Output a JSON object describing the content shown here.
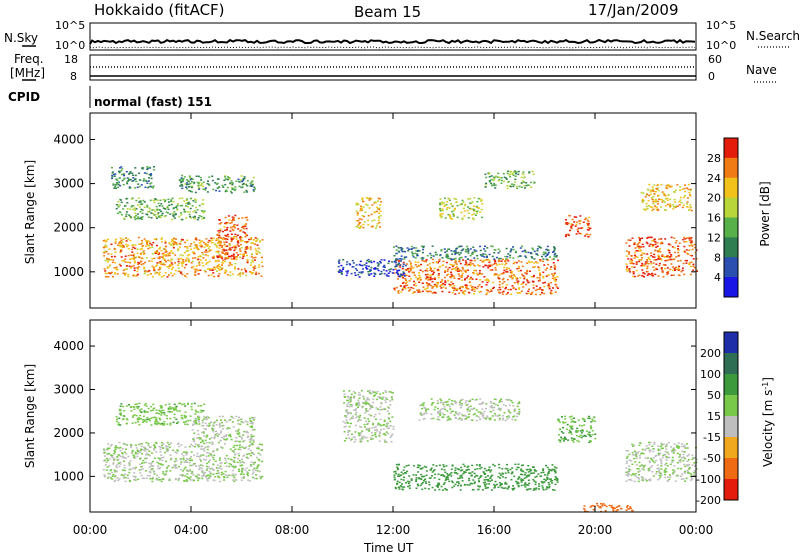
{
  "header": {
    "station": "Hokkaido (fitACF)",
    "beam": "Beam 15",
    "date": "17/Jan/2009"
  },
  "noise_panel": {
    "left_label": "N.Sky",
    "right_label": "N.Search",
    "left_ticks": [
      "10^5",
      "10^0"
    ],
    "right_ticks": [
      "10^5",
      "10^0"
    ]
  },
  "freq_panel": {
    "left_label_1": "Freq.",
    "left_label_2": "[MHz]",
    "left_ticks": [
      "18",
      "8"
    ],
    "right_label": "Nave",
    "right_ticks": [
      "60",
      "0"
    ]
  },
  "cpid_panel": {
    "label": "CPID",
    "mode": "normal (fast) 151"
  },
  "chart_data": [
    {
      "type": "heatmap",
      "name": "power",
      "ylabel": "Slant Range [km]",
      "xlabel": "Time UT",
      "x_ticks": [
        "00:00",
        "04:00",
        "08:00",
        "12:00",
        "16:00",
        "20:00",
        "00:00"
      ],
      "xlim_hours": [
        0,
        24
      ],
      "y_ticks": [
        1000,
        2000,
        3000,
        4000
      ],
      "ylim": [
        180,
        4600
      ],
      "colorbar": {
        "label": "Power [dB]",
        "ticks": [
          4,
          8,
          12,
          16,
          20,
          24,
          28
        ],
        "range": [
          0,
          32
        ],
        "colors": [
          "#1a16e6",
          "#2a4fb0",
          "#2e7e52",
          "#58b04a",
          "#b8d63a",
          "#f2c21a",
          "#f07a14",
          "#e41c0c"
        ]
      },
      "blobs": [
        {
          "t0": 0.5,
          "t1": 6.8,
          "r0": 900,
          "r1": 1800,
          "v": 24
        },
        {
          "t0": 1.0,
          "t1": 4.5,
          "r0": 2200,
          "r1": 2700,
          "v": 14
        },
        {
          "t0": 0.8,
          "t1": 2.5,
          "r0": 2900,
          "r1": 3400,
          "v": 10
        },
        {
          "t0": 3.5,
          "t1": 6.5,
          "r0": 2800,
          "r1": 3200,
          "v": 12
        },
        {
          "t0": 5.0,
          "t1": 6.2,
          "r0": 1300,
          "r1": 2300,
          "v": 28
        },
        {
          "t0": 10.5,
          "t1": 11.5,
          "r0": 2000,
          "r1": 2700,
          "v": 22
        },
        {
          "t0": 12.0,
          "t1": 18.5,
          "r0": 500,
          "r1": 1300,
          "v": 26
        },
        {
          "t0": 12.0,
          "t1": 18.5,
          "r0": 1300,
          "r1": 1600,
          "v": 10
        },
        {
          "t0": 13.8,
          "t1": 15.5,
          "r0": 2200,
          "r1": 2700,
          "v": 18
        },
        {
          "t0": 15.6,
          "t1": 17.6,
          "r0": 2900,
          "r1": 3300,
          "v": 14
        },
        {
          "t0": 18.8,
          "t1": 19.8,
          "r0": 1800,
          "r1": 2300,
          "v": 28
        },
        {
          "t0": 21.2,
          "t1": 24.0,
          "r0": 900,
          "r1": 1800,
          "v": 27
        },
        {
          "t0": 21.8,
          "t1": 23.8,
          "r0": 2400,
          "r1": 3000,
          "v": 22
        },
        {
          "t0": 9.8,
          "t1": 12.5,
          "r0": 900,
          "r1": 1300,
          "v": 6
        }
      ]
    },
    {
      "type": "heatmap",
      "name": "velocity",
      "ylabel": "Slant Range [km]",
      "xlabel": "Time UT",
      "x_ticks": [
        "00:00",
        "04:00",
        "08:00",
        "12:00",
        "16:00",
        "20:00",
        "00:00"
      ],
      "xlim_hours": [
        0,
        24
      ],
      "y_ticks": [
        1000,
        2000,
        3000,
        4000
      ],
      "ylim": [
        180,
        4600
      ],
      "colorbar": {
        "label": "Velocity [m s^-1]",
        "ticks": [
          200,
          100,
          50,
          15,
          -15,
          -50,
          -100,
          -200
        ],
        "colors": [
          "#1e2ea8",
          "#2e6e54",
          "#3c9a3c",
          "#78c84a",
          "#bebebe",
          "#f0a81e",
          "#f06a14",
          "#e41c0c"
        ]
      },
      "blobs": [
        {
          "t0": 0.5,
          "t1": 6.8,
          "r0": 900,
          "r1": 1800,
          "v": 0
        },
        {
          "t0": 1.0,
          "t1": 4.5,
          "r0": 2200,
          "r1": 2700,
          "v": 20
        },
        {
          "t0": 4.0,
          "t1": 6.5,
          "r0": 1800,
          "r1": 2400,
          "v": 0
        },
        {
          "t0": 10.0,
          "t1": 12.0,
          "r0": 1800,
          "r1": 3000,
          "v": 0
        },
        {
          "t0": 12.0,
          "t1": 18.5,
          "r0": 700,
          "r1": 1300,
          "v": 60
        },
        {
          "t0": 13.0,
          "t1": 17.0,
          "r0": 2300,
          "r1": 2800,
          "v": 0
        },
        {
          "t0": 18.5,
          "t1": 20.0,
          "r0": 1800,
          "r1": 2400,
          "v": 30
        },
        {
          "t0": 19.5,
          "t1": 21.5,
          "r0": 200,
          "r1": 400,
          "v": -60
        },
        {
          "t0": 21.2,
          "t1": 24.0,
          "r0": 900,
          "r1": 1800,
          "v": 0
        }
      ]
    }
  ]
}
